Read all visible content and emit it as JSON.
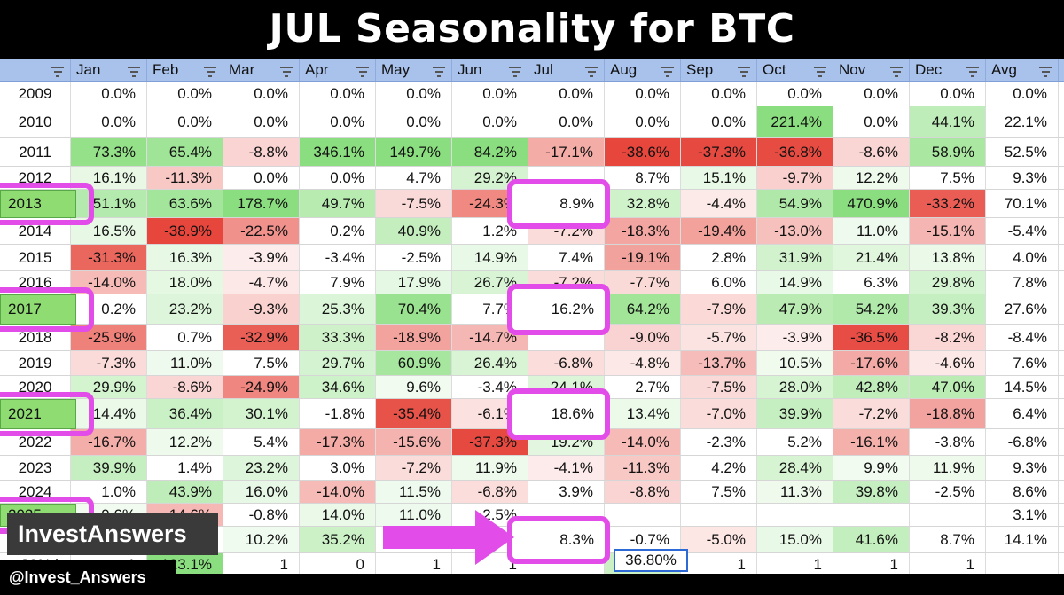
{
  "title": "JUL Seasonality for BTC",
  "chart_data": {
    "type": "table",
    "title": "JUL Seasonality for BTC",
    "columns": [
      "",
      "Jan",
      "Feb",
      "Mar",
      "Apr",
      "May",
      "Jun",
      "Jul",
      "Aug",
      "Sep",
      "Oct",
      "Nov",
      "Dec",
      "Avg"
    ],
    "rows": [
      {
        "year": "2009",
        "cells": [
          "0.0%",
          "0.0%",
          "0.0%",
          "0.0%",
          "0.0%",
          "0.0%",
          "0.0%",
          "0.0%",
          "0.0%",
          "0.0%",
          "0.0%",
          "0.0%",
          "0.0%"
        ],
        "values": [
          0,
          0,
          0,
          0,
          0,
          0,
          0,
          0,
          0,
          0,
          0,
          0,
          0
        ]
      },
      {
        "year": "2010",
        "cells": [
          "0.0%",
          "0.0%",
          "0.0%",
          "0.0%",
          "0.0%",
          "0.0%",
          "0.0%",
          "0.0%",
          "0.0%",
          "221.4%",
          "0.0%",
          "44.1%",
          "22.1%"
        ],
        "values": [
          0,
          0,
          0,
          0,
          0,
          0,
          0,
          0,
          0,
          221.4,
          0,
          44.1,
          22.1
        ]
      },
      {
        "year": "2011",
        "cells": [
          "73.3%",
          "65.4%",
          "-8.8%",
          "346.1%",
          "149.7%",
          "84.2%",
          "-17.1%",
          "-38.6%",
          "-37.3%",
          "-36.8%",
          "-8.6%",
          "58.9%",
          "52.5%"
        ],
        "values": [
          73.3,
          65.4,
          -8.8,
          346.1,
          149.7,
          84.2,
          -17.1,
          -38.6,
          -37.3,
          -36.8,
          -8.6,
          58.9,
          52.5
        ]
      },
      {
        "year": "2012",
        "cells": [
          "16.1%",
          "-11.3%",
          "0.0%",
          "0.0%",
          "4.7%",
          "29.2%",
          "",
          "8.7%",
          "15.1%",
          "-9.7%",
          "12.2%",
          "7.5%",
          "9.3%"
        ],
        "values": [
          16.1,
          -11.3,
          0,
          0,
          4.7,
          29.2,
          null,
          8.7,
          15.1,
          -9.7,
          12.2,
          7.5,
          9.3
        ]
      },
      {
        "year": "2013",
        "cells": [
          "51.1%",
          "63.6%",
          "178.7%",
          "49.7%",
          "-7.5%",
          "-24.3%",
          "8.9%",
          "32.8%",
          "-4.4%",
          "54.9%",
          "470.9%",
          "-33.2%",
          "70.1%"
        ],
        "values": [
          51.1,
          63.6,
          178.7,
          49.7,
          -7.5,
          -24.3,
          8.9,
          32.8,
          -4.4,
          54.9,
          470.9,
          -33.2,
          70.1
        ]
      },
      {
        "year": "2014",
        "cells": [
          "16.5%",
          "-38.9%",
          "-22.5%",
          "0.2%",
          "40.9%",
          "1.2%",
          "-7.2%",
          "-18.3%",
          "-19.4%",
          "-13.0%",
          "11.0%",
          "-15.1%",
          "-5.4%"
        ],
        "values": [
          16.5,
          -38.9,
          -22.5,
          0.2,
          40.9,
          1.2,
          -7.2,
          -18.3,
          -19.4,
          -13.0,
          11.0,
          -15.1,
          -5.4
        ]
      },
      {
        "year": "2015",
        "cells": [
          "-31.3%",
          "16.3%",
          "-3.9%",
          "-3.4%",
          "-2.5%",
          "14.9%",
          "7.4%",
          "-19.1%",
          "2.8%",
          "31.9%",
          "21.4%",
          "13.8%",
          "4.0%"
        ],
        "values": [
          -31.3,
          16.3,
          -3.9,
          -3.4,
          -2.5,
          14.9,
          7.4,
          -19.1,
          2.8,
          31.9,
          21.4,
          13.8,
          4.0
        ]
      },
      {
        "year": "2016",
        "cells": [
          "-14.0%",
          "18.0%",
          "-4.7%",
          "7.9%",
          "17.9%",
          "26.7%",
          "-7.2%",
          "-7.7%",
          "6.0%",
          "14.9%",
          "6.3%",
          "29.8%",
          "7.8%"
        ],
        "values": [
          -14.0,
          18.0,
          -4.7,
          7.9,
          17.9,
          26.7,
          -7.2,
          -7.7,
          6.0,
          14.9,
          6.3,
          29.8,
          7.8
        ]
      },
      {
        "year": "2017",
        "cells": [
          "0.2%",
          "23.2%",
          "-9.3%",
          "25.3%",
          "70.4%",
          "7.7%",
          "16.2%",
          "64.2%",
          "-7.9%",
          "47.9%",
          "54.2%",
          "39.3%",
          "27.6%"
        ],
        "values": [
          0.2,
          23.2,
          -9.3,
          25.3,
          70.4,
          7.7,
          16.2,
          64.2,
          -7.9,
          47.9,
          54.2,
          39.3,
          27.6
        ]
      },
      {
        "year": "2018",
        "cells": [
          "-25.9%",
          "0.7%",
          "-32.9%",
          "33.3%",
          "-18.9%",
          "-14.7%",
          "",
          "-9.0%",
          "-5.7%",
          "-3.9%",
          "-36.5%",
          "-8.2%",
          "-8.4%"
        ],
        "values": [
          -25.9,
          0.7,
          -32.9,
          33.3,
          -18.9,
          -14.7,
          null,
          -9.0,
          -5.7,
          -3.9,
          -36.5,
          -8.2,
          -8.4
        ]
      },
      {
        "year": "2019",
        "cells": [
          "-7.3%",
          "11.0%",
          "7.5%",
          "29.7%",
          "60.9%",
          "26.4%",
          "-6.8%",
          "-4.8%",
          "-13.7%",
          "10.5%",
          "-17.6%",
          "-4.6%",
          "7.6%"
        ],
        "values": [
          -7.3,
          11.0,
          7.5,
          29.7,
          60.9,
          26.4,
          -6.8,
          -4.8,
          -13.7,
          10.5,
          -17.6,
          -4.6,
          7.6
        ]
      },
      {
        "year": "2020",
        "cells": [
          "29.9%",
          "-8.6%",
          "-24.9%",
          "34.6%",
          "9.6%",
          "-3.4%",
          "24.1%",
          "2.7%",
          "-7.5%",
          "28.0%",
          "42.8%",
          "47.0%",
          "14.5%"
        ],
        "values": [
          29.9,
          -8.6,
          -24.9,
          34.6,
          9.6,
          -3.4,
          24.1,
          2.7,
          -7.5,
          28.0,
          42.8,
          47.0,
          14.5
        ]
      },
      {
        "year": "2021",
        "cells": [
          "14.4%",
          "36.4%",
          "30.1%",
          "-1.8%",
          "-35.4%",
          "-6.1%",
          "18.6%",
          "13.4%",
          "-7.0%",
          "39.9%",
          "-7.2%",
          "-18.8%",
          "6.4%"
        ],
        "values": [
          14.4,
          36.4,
          30.1,
          -1.8,
          -35.4,
          -6.1,
          18.6,
          13.4,
          -7.0,
          39.9,
          -7.2,
          -18.8,
          6.4
        ]
      },
      {
        "year": "2022",
        "cells": [
          "-16.7%",
          "12.2%",
          "5.4%",
          "-17.3%",
          "-15.6%",
          "-37.3%",
          "19.2%",
          "-14.0%",
          "-2.3%",
          "5.2%",
          "-16.1%",
          "-3.8%",
          "-6.8%"
        ],
        "values": [
          -16.7,
          12.2,
          5.4,
          -17.3,
          -15.6,
          -37.3,
          19.2,
          -14.0,
          -2.3,
          5.2,
          -16.1,
          -3.8,
          -6.8
        ]
      },
      {
        "year": "2023",
        "cells": [
          "39.9%",
          "1.4%",
          "23.2%",
          "3.0%",
          "-7.2%",
          "11.9%",
          "-4.1%",
          "-11.3%",
          "4.2%",
          "28.4%",
          "9.9%",
          "11.9%",
          "9.3%"
        ],
        "values": [
          39.9,
          1.4,
          23.2,
          3.0,
          -7.2,
          11.9,
          -4.1,
          -11.3,
          4.2,
          28.4,
          9.9,
          11.9,
          9.3
        ]
      },
      {
        "year": "2024",
        "cells": [
          "1.0%",
          "43.9%",
          "16.0%",
          "-14.0%",
          "11.5%",
          "-6.8%",
          "3.9%",
          "-8.8%",
          "7.5%",
          "11.3%",
          "39.8%",
          "-2.5%",
          "8.6%"
        ],
        "values": [
          1.0,
          43.9,
          16.0,
          -14.0,
          11.5,
          -6.8,
          3.9,
          -8.8,
          7.5,
          11.3,
          39.8,
          -2.5,
          8.6
        ]
      },
      {
        "year": "2025",
        "cells": [
          "9.6%",
          "-14.6%",
          "-0.8%",
          "14.0%",
          "11.0%",
          "2.5%",
          "",
          "",
          "",
          "",
          "",
          "",
          "3.1%"
        ],
        "values": [
          9.6,
          -14.6,
          -0.8,
          14.0,
          11.0,
          2.5,
          null,
          null,
          null,
          null,
          null,
          null,
          3.1
        ]
      },
      {
        "year": "",
        "cells": [
          "",
          "",
          "10.2%",
          "35.2%",
          "",
          "",
          "8.3%",
          "-0.7%",
          "-5.0%",
          "15.0%",
          "41.6%",
          "8.7%",
          "14.1%"
        ],
        "values": [
          null,
          null,
          10.2,
          35.2,
          null,
          null,
          8.3,
          -0.7,
          -5.0,
          15.0,
          41.6,
          8.7,
          14.1
        ]
      },
      {
        "year": "r 30% l",
        "cells": [
          "1",
          "123.1%",
          "1",
          "0",
          "1",
          "1",
          "",
          "36.80%",
          "1",
          "1",
          "1",
          "1",
          ""
        ],
        "values": [
          1,
          123.1,
          1,
          0,
          1,
          1,
          null,
          36.8,
          1,
          1,
          1,
          1,
          null
        ]
      }
    ],
    "highlighted_years": [
      "2013",
      "2017",
      "2021",
      "2025"
    ],
    "highlighted_jul": [
      {
        "year": "2013",
        "label": "8.9%"
      },
      {
        "year": "2017",
        "label": "16.2%"
      },
      {
        "year": "2021",
        "label": "18.6%"
      },
      {
        "year": "avg",
        "label": "8.3%"
      }
    ]
  },
  "colors": {
    "header": "#a9c2ec",
    "highlight": "#e24ce8",
    "positive": "#5cc83a",
    "negative": "#e0342a",
    "year_highlight": "#8fdc72"
  },
  "brand": {
    "name": "InvestAnswers",
    "handle": "@Invest_Answers"
  }
}
